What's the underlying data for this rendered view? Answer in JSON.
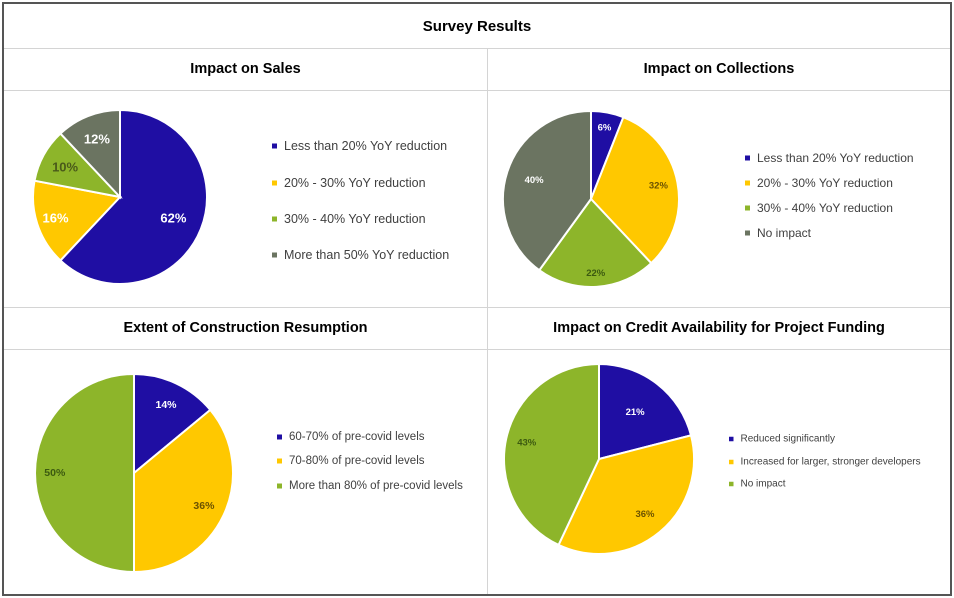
{
  "title": "Survey Results",
  "colors": {
    "blue": "#1F0EA3",
    "yellow": "#FFC800",
    "green": "#8DB52A",
    "gray": "#6B7461"
  },
  "chart_data": [
    {
      "type": "pie",
      "title": "Impact on Sales",
      "categories": [
        "Less than 20% YoY reduction",
        "20% - 30% YoY reduction",
        "30% - 40% YoY reduction",
        "More than 50% YoY reduction"
      ],
      "values": [
        62,
        16,
        10,
        12
      ],
      "labels": [
        "62%",
        "16%",
        "10%",
        "12%"
      ],
      "colors": [
        "#1F0EA3",
        "#FFC800",
        "#8DB52A",
        "#6B7461"
      ],
      "legend": "right"
    },
    {
      "type": "pie",
      "title": "Impact on Collections",
      "categories": [
        "Less than 20% YoY reduction",
        "20% - 30% YoY reduction",
        "30% - 40% YoY reduction",
        "No impact"
      ],
      "values": [
        6,
        32,
        22,
        40
      ],
      "labels": [
        "6%",
        "32%",
        "22%",
        "40%"
      ],
      "colors": [
        "#1F0EA3",
        "#FFC800",
        "#8DB52A",
        "#6B7461"
      ],
      "legend": "right"
    },
    {
      "type": "pie",
      "title": "Extent of Construction Resumption",
      "categories": [
        "60-70% of pre-covid levels",
        "70-80% of pre-covid levels",
        "More than 80% of pre-covid levels"
      ],
      "values": [
        14,
        36,
        50
      ],
      "labels": [
        "14%",
        "36%",
        "50%"
      ],
      "colors": [
        "#1F0EA3",
        "#FFC800",
        "#8DB52A"
      ],
      "legend": "right"
    },
    {
      "type": "pie",
      "title": "Impact on Credit Availability for Project Funding",
      "categories": [
        "Reduced significantly",
        "Increased for larger, stronger developers",
        "No impact"
      ],
      "values": [
        21,
        36,
        43
      ],
      "labels": [
        "21%",
        "36%",
        "43%"
      ],
      "colors": [
        "#1F0EA3",
        "#FFC800",
        "#8DB52A"
      ],
      "legend": "right"
    }
  ]
}
